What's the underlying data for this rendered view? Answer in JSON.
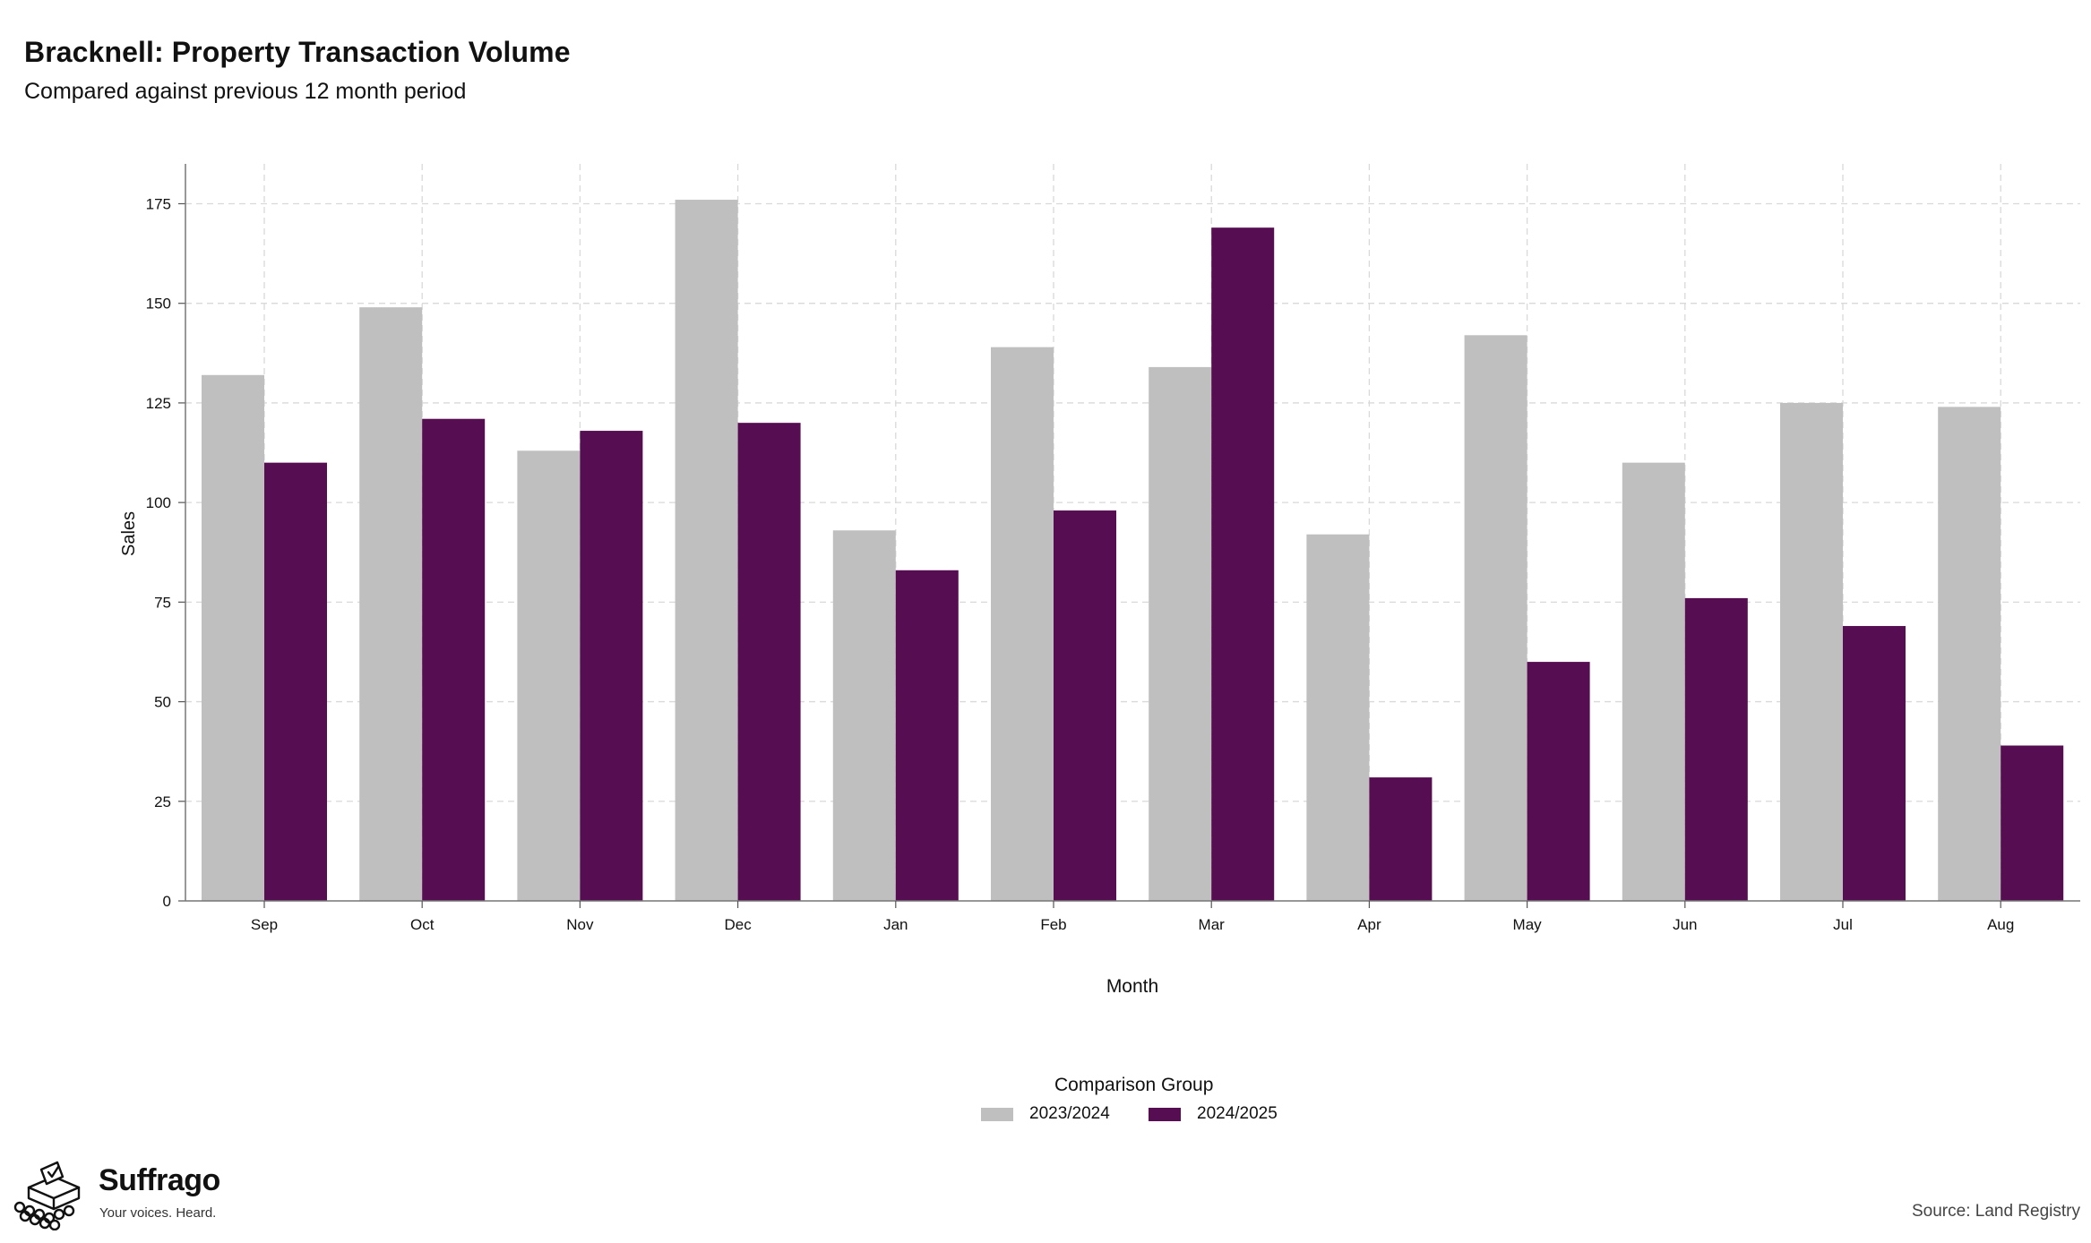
{
  "title": "Bracknell: Property Transaction Volume",
  "subtitle": "Compared against previous 12 month period",
  "chart_data": {
    "type": "bar",
    "xlabel": "Month",
    "ylabel": "Sales",
    "ylim": [
      0,
      185
    ],
    "yticks": [
      0,
      25,
      50,
      75,
      100,
      125,
      150,
      175
    ],
    "categories": [
      "Sep",
      "Oct",
      "Nov",
      "Dec",
      "Jan",
      "Feb",
      "Mar",
      "Apr",
      "May",
      "Jun",
      "Jul",
      "Aug"
    ],
    "series": [
      {
        "name": "2023/2024",
        "color": "#bfbfbf",
        "values": [
          132,
          149,
          113,
          176,
          93,
          139,
          134,
          92,
          142,
          110,
          125,
          124
        ]
      },
      {
        "name": "2024/2025",
        "color": "#560d51",
        "values": [
          110,
          121,
          118,
          120,
          83,
          98,
          169,
          31,
          60,
          76,
          69,
          39
        ]
      }
    ],
    "grid": true,
    "legend_title": "Comparison Group",
    "legend_position": "bottom-center"
  },
  "branding": {
    "name": "Suffrago",
    "tagline": "Your voices. Heard.",
    "icon": "ballot-box-icon"
  },
  "source": "Source: Land Registry"
}
